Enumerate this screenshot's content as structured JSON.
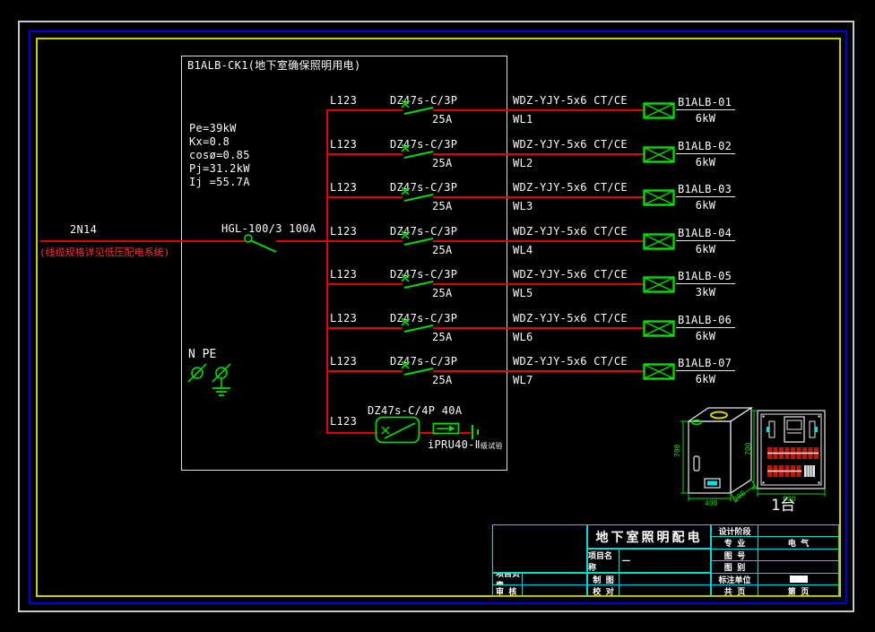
{
  "panel": {
    "title": "B1ALB-CK1(地下室确保照明用电)",
    "params": [
      "Pe=39kW",
      "Kx=0.8",
      "cosø=0.85",
      "Pj=31.2kW",
      "Ij =55.7A"
    ],
    "incoming": {
      "line_label": "2N14",
      "note": "(线缆规格详见低压配电系统)",
      "main_switch": "HGL-100/3 100A"
    },
    "bus_label": "N PE",
    "circuits": [
      {
        "phase": "L123",
        "breaker": "DZ47s-C/3P",
        "rating": "25A",
        "cable": "WDZ-YJY-5x6 CT/CE",
        "circuit_id": "WL1",
        "load_id": "B1ALB-01",
        "power": "6kW"
      },
      {
        "phase": "L123",
        "breaker": "DZ47s-C/3P",
        "rating": "25A",
        "cable": "WDZ-YJY-5x6 CT/CE",
        "circuit_id": "WL2",
        "load_id": "B1ALB-02",
        "power": "6kW"
      },
      {
        "phase": "L123",
        "breaker": "DZ47s-C/3P",
        "rating": "25A",
        "cable": "WDZ-YJY-5x6 CT/CE",
        "circuit_id": "WL3",
        "load_id": "B1ALB-03",
        "power": "6kW"
      },
      {
        "phase": "L123",
        "breaker": "DZ47s-C/3P",
        "rating": "25A",
        "cable": "WDZ-YJY-5x6 CT/CE",
        "circuit_id": "WL4",
        "load_id": "B1ALB-04",
        "power": "6kW"
      },
      {
        "phase": "L123",
        "breaker": "DZ47s-C/3P",
        "rating": "25A",
        "cable": "WDZ-YJY-5x6 CT/CE",
        "circuit_id": "WL5",
        "load_id": "B1ALB-05",
        "power": "3kW"
      },
      {
        "phase": "L123",
        "breaker": "DZ47s-C/3P",
        "rating": "25A",
        "cable": "WDZ-YJY-5x6 CT/CE",
        "circuit_id": "WL6",
        "load_id": "B1ALB-06",
        "power": "6kW"
      },
      {
        "phase": "L123",
        "breaker": "DZ47s-C/3P",
        "rating": "25A",
        "cable": "WDZ-YJY-5x6 CT/CE",
        "circuit_id": "WL7",
        "load_id": "B1ALB-07",
        "power": "6kW"
      }
    ],
    "spd_circuit": {
      "phase": "L123",
      "breaker": "DZ47s-C/4P 40A",
      "device": "iPRU40-Ⅱ",
      "device_note": "级试验"
    }
  },
  "cabinet": {
    "dims_3d": {
      "height": "700",
      "width": "400",
      "depth": "200"
    },
    "dims_front": {
      "height": "700",
      "width": "600"
    },
    "quantity": "1台"
  },
  "title_block": {
    "drawing_title": "地下室照明配电",
    "project_lead_label": "项目负责",
    "review_label": "审  核",
    "project_name_label": "项目名称",
    "project_name_value": "一",
    "draft_label": "制  图",
    "proof_label": "校  对",
    "design_stage_label": "设计阶段",
    "specialty_label": "专  业",
    "specialty_value": "电 气",
    "drawing_no_label": "图  号",
    "drawing_type_label": "图  别",
    "dim_unit_label": "标注单位",
    "pages_total_label": "共  页",
    "page_no_value": "第  页"
  },
  "colors": {
    "wire": "#e80000",
    "symbol": "#00dd00",
    "frame_blue": "#0000ee",
    "frame_yellow": "#cdcd00",
    "table": "#00dada",
    "text": "#fdfdfd"
  }
}
